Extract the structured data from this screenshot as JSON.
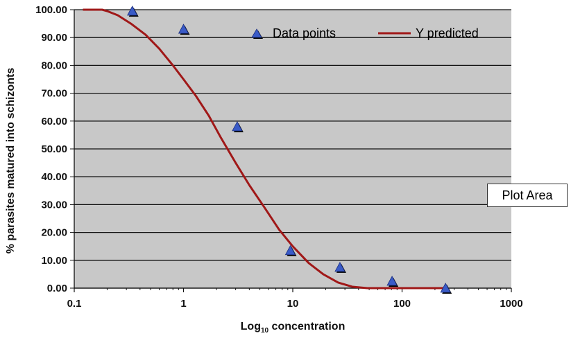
{
  "chart_data": {
    "type": "scatter",
    "xlabel_prefix": "Log",
    "xlabel_sub": "10",
    "xlabel_suffix": " concentration",
    "ylabel": "% parasites matured into schizonts",
    "x_scale": "log",
    "xlim": [
      0.1,
      1000
    ],
    "ylim": [
      0,
      100
    ],
    "y_ticks": [
      "0.00",
      "10.00",
      "20.00",
      "30.00",
      "40.00",
      "50.00",
      "60.00",
      "70.00",
      "80.00",
      "90.00",
      "100.00"
    ],
    "y_tick_values": [
      0,
      10,
      20,
      30,
      40,
      50,
      60,
      70,
      80,
      90,
      100
    ],
    "x_ticks": [
      "0.1",
      "1",
      "10",
      "100",
      "1000"
    ],
    "x_tick_values": [
      0.1,
      1,
      10,
      100,
      1000
    ],
    "grid": "horizontal",
    "legend_position": "top-right",
    "series": [
      {
        "name": "Data points",
        "kind": "markers",
        "marker": "triangle",
        "color": "#3a5bc7",
        "x": [
          0.34,
          1.0,
          3.1,
          9.5,
          27,
          81,
          250
        ],
        "y": [
          99.5,
          93.0,
          58.0,
          13.5,
          7.5,
          2.5,
          0.0
        ]
      },
      {
        "name": "Y predicted",
        "kind": "line",
        "color": "#a01818",
        "x": [
          0.12,
          0.18,
          0.2,
          0.25,
          0.33,
          0.45,
          0.6,
          0.8,
          1.0,
          1.3,
          1.7,
          2.2,
          3.0,
          4.0,
          5.5,
          7.5,
          10,
          14,
          19,
          26,
          35,
          48,
          60,
          100,
          250
        ],
        "y": [
          100,
          100,
          99.5,
          98,
          95,
          91,
          86,
          80,
          75,
          69,
          62,
          54,
          45,
          37,
          29,
          21,
          15,
          9,
          5,
          2,
          0.5,
          0,
          0,
          0,
          0
        ]
      }
    ]
  },
  "tooltip": {
    "label": "Plot Area"
  },
  "colors": {
    "plot_background": "#c8c8c8",
    "gridline": "#111111"
  }
}
